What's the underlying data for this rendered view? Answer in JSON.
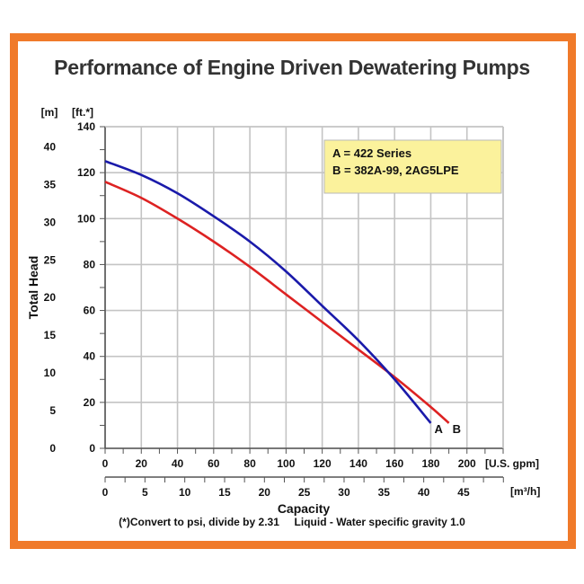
{
  "chart_data": {
    "type": "line",
    "title": "Performance of Engine Driven Dewatering Pumps",
    "xlabel": "Capacity",
    "ylabel": "Total Head",
    "x_unit_primary": "[U.S. gpm]",
    "x_unit_secondary": "[m³/h]",
    "y_unit_left": "[m]",
    "y_unit_right": "[ft.*]",
    "xlim": [
      0,
      220
    ],
    "ylim": [
      0,
      140
    ],
    "x_ticks_gpm": [
      "0",
      "20",
      "40",
      "60",
      "80",
      "100",
      "120",
      "140",
      "160",
      "180",
      "200"
    ],
    "x_ticks_m3h": [
      "0",
      "5",
      "10",
      "15",
      "20",
      "25",
      "30",
      "35",
      "40",
      "45"
    ],
    "y_ticks_ft": [
      "0",
      "20",
      "40",
      "60",
      "80",
      "100",
      "120",
      "140"
    ],
    "y_ticks_m": [
      "0",
      "5",
      "10",
      "15",
      "20",
      "25",
      "30",
      "35",
      "40"
    ],
    "grid": true,
    "legend_position": "top-right",
    "legend": [
      "A = 422 Series",
      "B = 382A-99, 2AG5LPE"
    ],
    "series": [
      {
        "name": "A",
        "color": "#1a1aaa",
        "x": [
          0,
          20,
          40,
          60,
          80,
          100,
          120,
          140,
          160,
          180
        ],
        "y": [
          125,
          119,
          111,
          101,
          90,
          77,
          62,
          47,
          30,
          11
        ]
      },
      {
        "name": "B",
        "color": "#dd2222",
        "x": [
          0,
          20,
          40,
          60,
          80,
          100,
          120,
          140,
          160,
          180,
          190
        ],
        "y": [
          116,
          109,
          100,
          90,
          79,
          67,
          55,
          43,
          31,
          18,
          11
        ]
      }
    ],
    "footnote": "(*)Convert to psi, divide by 2.31     Liquid - Water specific gravity 1.0"
  }
}
